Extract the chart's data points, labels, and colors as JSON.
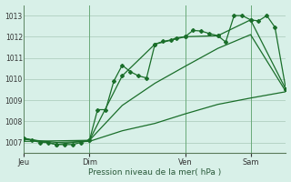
{
  "background_color": "#cce8d8",
  "plot_bg_color": "#d8f0e8",
  "grid_color": "#a8c8b8",
  "line_color": "#1a6e2a",
  "marker_color": "#1a6e2a",
  "xlabel": "Pression niveau de la mer( hPa )",
  "ylim": [
    1006.5,
    1013.5
  ],
  "yticks": [
    1007,
    1008,
    1009,
    1010,
    1011,
    1012,
    1013
  ],
  "day_labels": [
    "Jeu",
    "Dim",
    "Ven",
    "Sam"
  ],
  "day_positions": [
    0.0,
    0.25,
    0.615,
    0.865
  ],
  "vline_positions": [
    0.0,
    0.25,
    0.615,
    0.865
  ],
  "series1_x": [
    0.0,
    0.031,
    0.062,
    0.093,
    0.125,
    0.156,
    0.187,
    0.218,
    0.25,
    0.281,
    0.312,
    0.343,
    0.375,
    0.406,
    0.437,
    0.468,
    0.5,
    0.531,
    0.562,
    0.582,
    0.615,
    0.645,
    0.677,
    0.708,
    0.74,
    0.77,
    0.802,
    0.833,
    0.865,
    0.895,
    0.927,
    0.958,
    1.0
  ],
  "series1_y": [
    1007.2,
    1007.1,
    1007.0,
    1007.0,
    1006.9,
    1006.9,
    1006.9,
    1007.0,
    1007.1,
    1008.55,
    1008.55,
    1009.9,
    1010.65,
    1010.35,
    1010.15,
    1010.05,
    1011.65,
    1011.78,
    1011.85,
    1011.95,
    1012.0,
    1012.3,
    1012.27,
    1012.15,
    1012.05,
    1011.75,
    1013.0,
    1013.0,
    1012.8,
    1012.75,
    1013.0,
    1012.45,
    1009.5
  ],
  "series2_x": [
    0.0,
    0.125,
    0.25,
    0.375,
    0.5,
    0.615,
    0.74,
    0.865,
    1.0
  ],
  "series2_y": [
    1007.2,
    1006.9,
    1007.1,
    1010.15,
    1011.65,
    1012.0,
    1012.05,
    1012.8,
    1009.5
  ],
  "series3_x": [
    0.0,
    0.25,
    0.375,
    0.5,
    0.615,
    0.74,
    0.865,
    1.0
  ],
  "series3_y": [
    1007.05,
    1007.1,
    1008.75,
    1009.8,
    1010.6,
    1011.45,
    1012.1,
    1009.4
  ],
  "series4_x": [
    0.0,
    0.125,
    0.25,
    0.375,
    0.5,
    0.615,
    0.74,
    0.865,
    1.0
  ],
  "series4_y": [
    1007.15,
    1007.0,
    1007.05,
    1007.55,
    1007.9,
    1008.35,
    1008.8,
    1009.1,
    1009.4
  ]
}
